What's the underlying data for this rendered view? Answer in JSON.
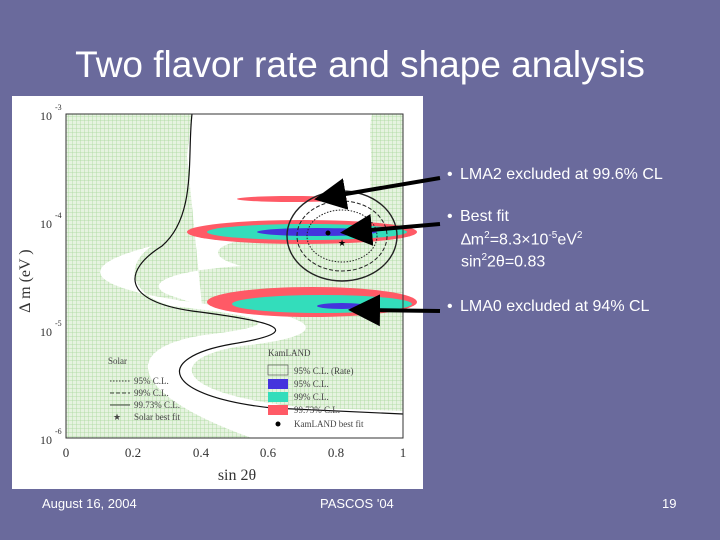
{
  "slide": {
    "title": "Two flavor rate and shape analysis",
    "bullets": [
      "LMA2 excluded at 99.6% CL",
      "Best fit",
      "LMA0 excluded at 94% CL"
    ],
    "bestfit_dm2_prefix": "∆m",
    "bestfit_dm2_value": "=8.3×10",
    "bestfit_dm2_unit": "eV",
    "bestfit_sin_prefix": "sin",
    "bestfit_sin_value": "2θ=0.83",
    "footer_date": "August 16, 2004",
    "footer_conf": "PASCOS '04",
    "footer_page": "19"
  },
  "plot": {
    "ylabel": "∆ m (eV )",
    "xlabel": "sin 2θ",
    "xticks": [
      "0",
      "0.2",
      "0.4",
      "0.6",
      "0.8",
      "1"
    ],
    "yticks": [
      "10",
      "10",
      "10",
      "10"
    ],
    "ytick_exps": [
      "-3",
      "-4",
      "-5",
      "-6"
    ],
    "legend_solar_title": "Solar",
    "legend_solar": [
      "95% C.L.",
      "99% C.L.",
      "99.73% C.L.",
      "Solar best fit"
    ],
    "legend_kam_title": "KamLAND",
    "legend_kam": [
      "95% C.L. (Rate)",
      "95% C.L.",
      "99% C.L.",
      "99.73% C.L.",
      "KamLAND best fit"
    ],
    "colors": {
      "c95": "#4433dd",
      "c99": "#33ddbb",
      "c9973": "#ff5a66",
      "green": "#d9f0d3"
    }
  }
}
